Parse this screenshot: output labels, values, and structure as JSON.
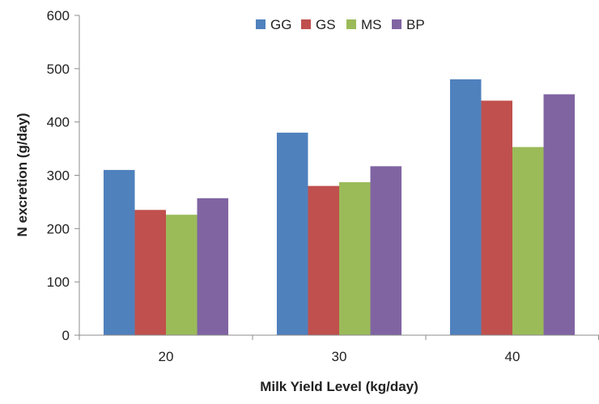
{
  "chart_data": {
    "type": "bar",
    "title": "",
    "xlabel": "Milk Yield Level (kg/day)",
    "ylabel": "N excretion (g/day)",
    "categories": [
      "20",
      "30",
      "40"
    ],
    "ylim": [
      0,
      600
    ],
    "yticks": [
      0,
      100,
      200,
      300,
      400,
      500,
      600
    ],
    "grid": false,
    "legend_position": "top-center",
    "series": [
      {
        "name": "GG",
        "color": "#4f81bd",
        "values": [
          310,
          380,
          480
        ]
      },
      {
        "name": "GS",
        "color": "#c0504d",
        "values": [
          235,
          280,
          440
        ]
      },
      {
        "name": "MS",
        "color": "#9bbb59",
        "values": [
          226,
          287,
          353
        ]
      },
      {
        "name": "BP",
        "color": "#8064a2",
        "values": [
          257,
          317,
          452
        ]
      }
    ]
  }
}
